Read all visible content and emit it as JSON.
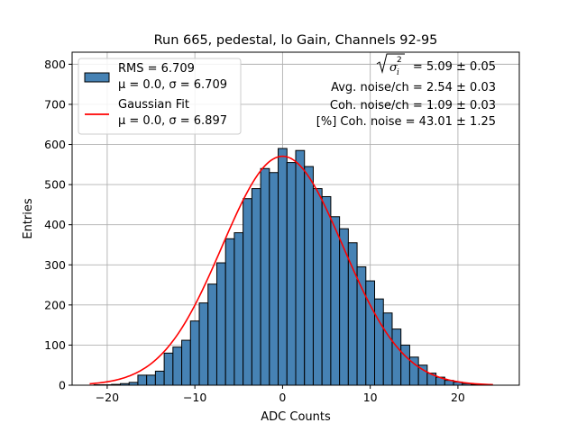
{
  "chart_data": {
    "type": "bar",
    "title": "Run 665, pedestal, lo Gain, Channels 92-95",
    "xlabel": "ADC Counts",
    "ylabel": "Entries",
    "xlim": [
      -24,
      27
    ],
    "ylim": [
      0,
      830
    ],
    "grid": true,
    "legend_position": "top-left",
    "x_ticks": [
      -20,
      -10,
      0,
      10,
      20
    ],
    "y_ticks": [
      0,
      100,
      200,
      300,
      400,
      500,
      600,
      700,
      800
    ],
    "bin_width": 1,
    "bin_centers": [
      -21,
      -20,
      -19,
      -18,
      -17,
      -16,
      -15,
      -14,
      -13,
      -12,
      -11,
      -10,
      -9,
      -8,
      -7,
      -6,
      -5,
      -4,
      -3,
      -2,
      -1,
      0,
      1,
      2,
      3,
      4,
      5,
      6,
      7,
      8,
      9,
      10,
      11,
      12,
      13,
      14,
      15,
      16,
      17,
      18,
      19,
      20,
      21,
      22,
      23
    ],
    "counts": [
      1,
      1,
      2,
      4,
      7,
      25,
      25,
      35,
      80,
      95,
      112,
      160,
      205,
      252,
      305,
      365,
      380,
      465,
      490,
      540,
      530,
      590,
      555,
      585,
      545,
      490,
      470,
      420,
      390,
      355,
      295,
      260,
      215,
      180,
      140,
      100,
      70,
      50,
      30,
      20,
      12,
      8,
      4,
      2,
      1
    ],
    "series": [
      {
        "name": "RMS = 6.709",
        "name_line2": "μ = 0.0, σ = 6.709",
        "kind": "histogram",
        "color": "#4682b4"
      },
      {
        "name": "Gaussian Fit",
        "name_line2": "μ = 0.0, σ = 6.897",
        "kind": "line",
        "color": "#ff0000",
        "mu": 0.0,
        "sigma": 6.897,
        "x_range": [
          -22,
          24
        ]
      }
    ],
    "annotations": {
      "sigma_line_value": "= 5.09 ± 0.05",
      "avg_noise": "Avg. noise/ch = 2.54 ± 0.03",
      "coh_noise": "Coh. noise/ch = 1.09 ± 0.03",
      "pct_coh_noise": "[%] Coh. noise = 43.01 ± 1.25"
    }
  }
}
